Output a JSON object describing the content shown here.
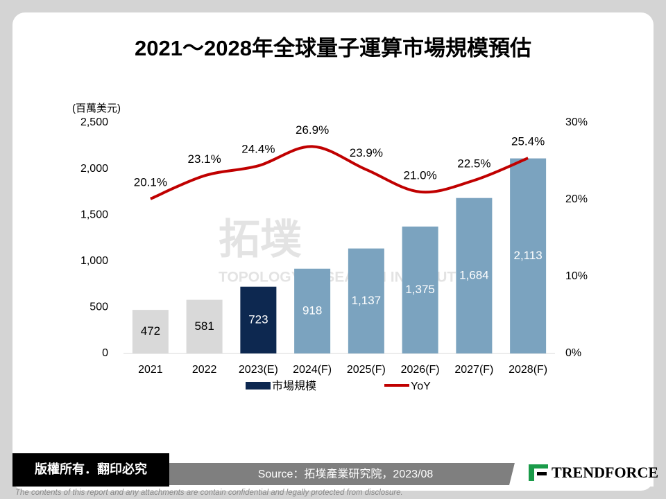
{
  "chart_data": {
    "type": "bar",
    "title": "2021～2028年全球量子運算市場規模預估",
    "y_label": "(百萬美元)",
    "categories": [
      "2021",
      "2022",
      "2023(E)",
      "2024(F)",
      "2025(F)",
      "2026(F)",
      "2027(F)",
      "2028(F)"
    ],
    "series": [
      {
        "name": "市場規模",
        "type": "bar",
        "color": "#0d2850",
        "bar_colors": [
          "#d9d9d9",
          "#d9d9d9",
          "#0d2850",
          "#7ba3bf",
          "#7ba3bf",
          "#7ba3bf",
          "#7ba3bf",
          "#7ba3bf"
        ],
        "values": [
          472,
          581,
          723,
          918,
          1137,
          1375,
          1684,
          2113
        ],
        "value_labels": [
          "472",
          "581",
          "723",
          "918",
          "1,137",
          "1,375",
          "1,684",
          "2,113"
        ]
      },
      {
        "name": "YoY",
        "type": "line",
        "axis": "y2",
        "color": "#c00000",
        "values": [
          20.1,
          23.1,
          24.4,
          26.9,
          23.9,
          21.0,
          22.5,
          25.4
        ],
        "value_labels": [
          "20.1%",
          "23.1%",
          "24.4%",
          "26.9%",
          "23.9%",
          "21.0%",
          "22.5%",
          "25.4%"
        ]
      }
    ],
    "ylim": [
      0,
      2500
    ],
    "yticks": [
      0,
      500,
      {
        "value": 1000,
        "label": "1,000"
      },
      {
        "value": 1500,
        "label": "1,500"
      },
      {
        "value": 2000,
        "label": "2,000"
      },
      {
        "value": 2500,
        "label": "2,500"
      }
    ],
    "y2lim": [
      0,
      30
    ],
    "y2ticks": [
      {
        "value": 0,
        "label": "0%"
      },
      {
        "value": 10,
        "label": "10%"
      },
      {
        "value": 20,
        "label": "20%"
      },
      {
        "value": 30,
        "label": "30%"
      }
    ],
    "smooth": true,
    "grid": false
  },
  "watermark": {
    "logo": "拓墣",
    "text": "TOPOLOGY RESEARCH INSTITUTE"
  },
  "footer": {
    "copyright": "版權所有．翻印必究",
    "source": "Source：拓墣產業研究院，2023/08",
    "brand": "TRENDFORCE",
    "disclaimer": "The contents of this report and any attachments are contain confidential and legally protected from disclosure."
  }
}
